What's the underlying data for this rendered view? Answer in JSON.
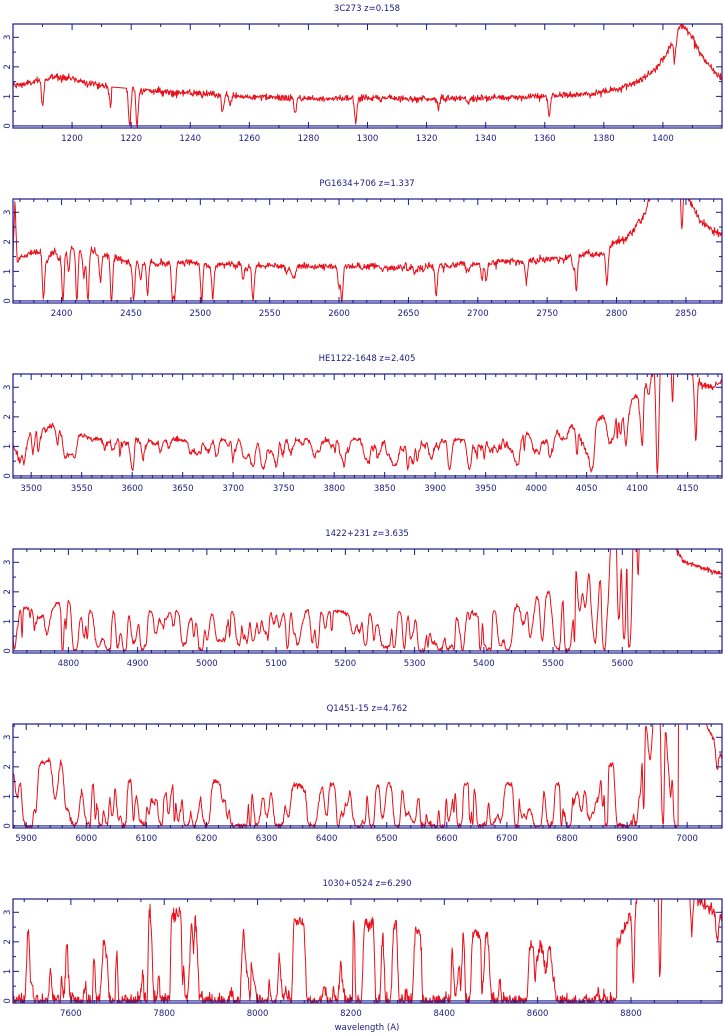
{
  "chart_data": [
    {
      "type": "line",
      "title": "3C273  z=0.158",
      "z": 0.158,
      "xlim": [
        1180,
        1420
      ],
      "ylim": [
        -0.07,
        3.45
      ],
      "xticks": [
        "1200",
        "1220",
        "1240",
        "1260",
        "1280",
        "1300",
        "1320",
        "1340",
        "1360",
        "1380",
        "1400"
      ],
      "xtick_values": [
        1200,
        1220,
        1240,
        1260,
        1280,
        1300,
        1320,
        1340,
        1360,
        1380,
        1400
      ],
      "x_minor_step": 10,
      "yticks": [
        "0",
        "1",
        "2",
        "3"
      ],
      "ytick_values": [
        0,
        1,
        2,
        3
      ],
      "continuum": [
        [
          1180,
          1.35
        ],
        [
          1188,
          1.5
        ],
        [
          1195,
          1.68
        ],
        [
          1200,
          1.6
        ],
        [
          1206,
          1.45
        ],
        [
          1213,
          1.32
        ],
        [
          1218,
          1.28
        ],
        [
          1222,
          1.22
        ],
        [
          1240,
          1.1
        ],
        [
          1260,
          0.98
        ],
        [
          1280,
          0.93
        ],
        [
          1300,
          0.95
        ],
        [
          1320,
          0.92
        ],
        [
          1340,
          0.94
        ],
        [
          1360,
          1.0
        ],
        [
          1375,
          1.08
        ],
        [
          1385,
          1.25
        ],
        [
          1392,
          1.5
        ],
        [
          1398,
          2.0
        ],
        [
          1402,
          2.6
        ],
        [
          1406,
          3.4
        ],
        [
          1409,
          3.2
        ],
        [
          1413,
          2.4
        ],
        [
          1417,
          1.9
        ],
        [
          1420,
          1.6
        ]
      ],
      "gaps": [
        [
          1213.3,
          1218.3
        ]
      ],
      "forest": {
        "end": 1180,
        "opacity": 0
      },
      "noise": 0.07,
      "absorption_lines": [
        [
          1190,
          0.55
        ],
        [
          1213,
          0.5
        ],
        [
          1219.5,
          1.0
        ],
        [
          1222,
          1.0
        ],
        [
          1251,
          0.5
        ],
        [
          1253.5,
          0.3
        ],
        [
          1275.5,
          0.55
        ],
        [
          1296,
          0.9
        ],
        [
          1324,
          0.35
        ],
        [
          1334,
          0.2
        ],
        [
          1361.5,
          0.65
        ],
        [
          1404,
          0.25
        ]
      ]
    },
    {
      "type": "line",
      "title": "PG1634+706  z=1.337",
      "z": 1.337,
      "xlim": [
        2365,
        2876
      ],
      "ylim": [
        -0.07,
        3.45
      ],
      "xticks": [
        "2400",
        "2450",
        "2500",
        "2550",
        "2600",
        "2650",
        "2700",
        "2750",
        "2800",
        "2850"
      ],
      "xtick_values": [
        2400,
        2450,
        2500,
        2550,
        2600,
        2650,
        2700,
        2750,
        2800,
        2850
      ],
      "x_minor_step": 10,
      "yticks": [
        "0",
        "1",
        "2",
        "3"
      ],
      "ytick_values": [
        0,
        1,
        2,
        3
      ],
      "continuum": [
        [
          2365,
          1.5
        ],
        [
          2366.5,
          3.6
        ],
        [
          2368,
          1.55
        ],
        [
          2375,
          1.55
        ],
        [
          2380,
          1.65
        ],
        [
          2400,
          1.75
        ],
        [
          2415,
          1.82
        ],
        [
          2430,
          1.65
        ],
        [
          2445,
          1.35
        ],
        [
          2500,
          1.3
        ],
        [
          2550,
          1.2
        ],
        [
          2650,
          1.2
        ],
        [
          2700,
          1.3
        ],
        [
          2750,
          1.45
        ],
        [
          2790,
          1.7
        ],
        [
          2810,
          2.3
        ],
        [
          2825,
          3.6
        ],
        [
          2841,
          5.0
        ],
        [
          2850,
          3.6
        ],
        [
          2860,
          2.7
        ],
        [
          2876,
          2.2
        ]
      ],
      "gaps": [],
      "forest": {
        "end": 2835,
        "opacity": 0.04
      },
      "noise": 0.06,
      "absorption_lines": [
        [
          2387,
          0.95
        ],
        [
          2401,
          1.0
        ],
        [
          2405,
          0.45
        ],
        [
          2411,
          1.0
        ],
        [
          2416,
          0.5
        ],
        [
          2419,
          1.0
        ],
        [
          2428,
          0.6
        ],
        [
          2436,
          1.0
        ],
        [
          2452,
          1.0
        ],
        [
          2457,
          0.4
        ],
        [
          2462,
          0.85
        ],
        [
          2480,
          1.0
        ],
        [
          2481.5,
          1.0
        ],
        [
          2501,
          1.0
        ],
        [
          2509,
          0.9
        ],
        [
          2531,
          0.35
        ],
        [
          2538,
          1.0
        ],
        [
          2600,
          0.6
        ],
        [
          2602,
          1.0
        ],
        [
          2670,
          0.9
        ],
        [
          2703,
          0.5
        ],
        [
          2706,
          0.45
        ],
        [
          2735,
          0.55
        ],
        [
          2771,
          0.75
        ],
        [
          2793,
          0.65
        ],
        [
          2847,
          0.4
        ]
      ]
    },
    {
      "type": "line",
      "title": "HE1122-1648  z=2.405",
      "z": 2.405,
      "xlim": [
        3482,
        4184
      ],
      "ylim": [
        -0.07,
        3.45
      ],
      "xticks": [
        "3500",
        "3550",
        "3600",
        "3650",
        "3700",
        "3750",
        "3800",
        "3850",
        "3900",
        "3950",
        "4000",
        "4050",
        "4100",
        "4150"
      ],
      "xtick_values": [
        3500,
        3550,
        3600,
        3650,
        3700,
        3750,
        3800,
        3850,
        3900,
        3950,
        4000,
        4050,
        4100,
        4150
      ],
      "x_minor_step": 10,
      "yticks": [
        "0",
        "1",
        "2",
        "3"
      ],
      "ytick_values": [
        0,
        1,
        2,
        3
      ],
      "continuum": [
        [
          3482,
          1.3
        ],
        [
          3490,
          1.55
        ],
        [
          3520,
          1.68
        ],
        [
          3540,
          1.55
        ],
        [
          3560,
          1.25
        ],
        [
          3650,
          1.22
        ],
        [
          3750,
          1.28
        ],
        [
          3850,
          1.22
        ],
        [
          3950,
          1.25
        ],
        [
          4000,
          1.45
        ],
        [
          4050,
          1.75
        ],
        [
          4080,
          2.2
        ],
        [
          4100,
          2.8
        ],
        [
          4115,
          3.5
        ],
        [
          4130,
          5.0
        ],
        [
          4150,
          3.6
        ],
        [
          4165,
          3.05
        ],
        [
          4175,
          3.0
        ],
        [
          4184,
          3.2
        ]
      ],
      "gaps": [],
      "forest": {
        "end": 4125,
        "opacity": 0.28
      },
      "noise": 0.05,
      "absorption_lines": [
        [
          4120,
          0.92
        ],
        [
          4135,
          0.45
        ],
        [
          4158,
          0.65
        ]
      ]
    },
    {
      "type": "line",
      "title": "1422+231  z=3.635",
      "z": 3.635,
      "xlim": [
        4720,
        5744
      ],
      "ylim": [
        -0.07,
        3.45
      ],
      "xticks": [
        "4800",
        "4900",
        "5000",
        "5100",
        "5200",
        "5300",
        "5400",
        "5500",
        "5600"
      ],
      "xtick_values": [
        4800,
        4900,
        5000,
        5100,
        5200,
        5300,
        5400,
        5500,
        5600
      ],
      "x_minor_step": 20,
      "yticks": [
        "0",
        "1",
        "2",
        "3"
      ],
      "ytick_values": [
        0,
        1,
        2,
        3
      ],
      "continuum": [
        [
          4720,
          1.4
        ],
        [
          4780,
          1.6
        ],
        [
          4800,
          1.8
        ],
        [
          4830,
          1.35
        ],
        [
          5400,
          1.35
        ],
        [
          5450,
          1.55
        ],
        [
          5500,
          2.1
        ],
        [
          5540,
          3.5
        ],
        [
          5600,
          6.0
        ],
        [
          5660,
          4.0
        ],
        [
          5690,
          3.0
        ],
        [
          5744,
          2.6
        ]
      ],
      "gaps": [],
      "forest": {
        "end": 5632,
        "opacity": 0.9
      },
      "noise": 0.04,
      "absorption_lines": []
    },
    {
      "type": "line",
      "title": "Q1451-15  z=4.762",
      "z": 4.762,
      "xlim": [
        5878,
        7058
      ],
      "ylim": [
        -0.07,
        3.45
      ],
      "xticks": [
        "5900",
        "6000",
        "6100",
        "6200",
        "6300",
        "6400",
        "6500",
        "6600",
        "6700",
        "6800",
        "6900",
        "7000"
      ],
      "xtick_values": [
        5900,
        6000,
        6100,
        6200,
        6300,
        6400,
        6500,
        6600,
        6700,
        6800,
        6900,
        7000
      ],
      "x_minor_step": 20,
      "yticks": [
        "0",
        "1",
        "2",
        "3"
      ],
      "ytick_values": [
        0,
        1,
        2,
        3
      ],
      "continuum": [
        [
          5878,
          1.8
        ],
        [
          5950,
          2.3
        ],
        [
          6000,
          1.5
        ],
        [
          6150,
          1.6
        ],
        [
          6300,
          1.4
        ],
        [
          6800,
          1.45
        ],
        [
          6880,
          2.1
        ],
        [
          6930,
          3.5
        ],
        [
          6980,
          5.0
        ],
        [
          7030,
          3.5
        ],
        [
          7058,
          2.3
        ]
      ],
      "gaps": [],
      "forest": {
        "end": 6985,
        "opacity": 1.6
      },
      "noise": 0.05,
      "absorption_lines": [
        [
          6960,
          0.97
        ],
        [
          6982,
          0.97
        ],
        [
          7050,
          0.3
        ]
      ]
    },
    {
      "type": "line",
      "title": "1030+0524  z=6.290",
      "z": 6.29,
      "xlim": [
        7476,
        8995
      ],
      "ylim": [
        -0.07,
        3.45
      ],
      "xticks": [
        "7600",
        "7800",
        "8000",
        "8200",
        "8400",
        "8600",
        "8800"
      ],
      "xtick_values": [
        7600,
        7800,
        8000,
        8200,
        8400,
        8600,
        8800
      ],
      "x_minor_step": 50,
      "xlabel": "wavelength (A)",
      "yticks": [
        "0",
        "1",
        "2",
        "3"
      ],
      "ytick_values": [
        0,
        1,
        2,
        3
      ],
      "continuum": [
        [
          7476,
          2.5
        ],
        [
          7800,
          3.0
        ],
        [
          8400,
          2.5
        ],
        [
          8760,
          1.5
        ],
        [
          8800,
          3.0
        ],
        [
          8850,
          5.0
        ],
        [
          8900,
          4.0
        ],
        [
          8995,
          2.8
        ]
      ],
      "gaps": [],
      "forest": {
        "end": 8770,
        "opacity": 4.5
      },
      "noise": 0.12,
      "absorption_lines": [
        [
          8805,
          0.8
        ],
        [
          8862,
          0.85
        ],
        [
          8930,
          0.35
        ],
        [
          8985,
          0.3
        ]
      ]
    }
  ]
}
